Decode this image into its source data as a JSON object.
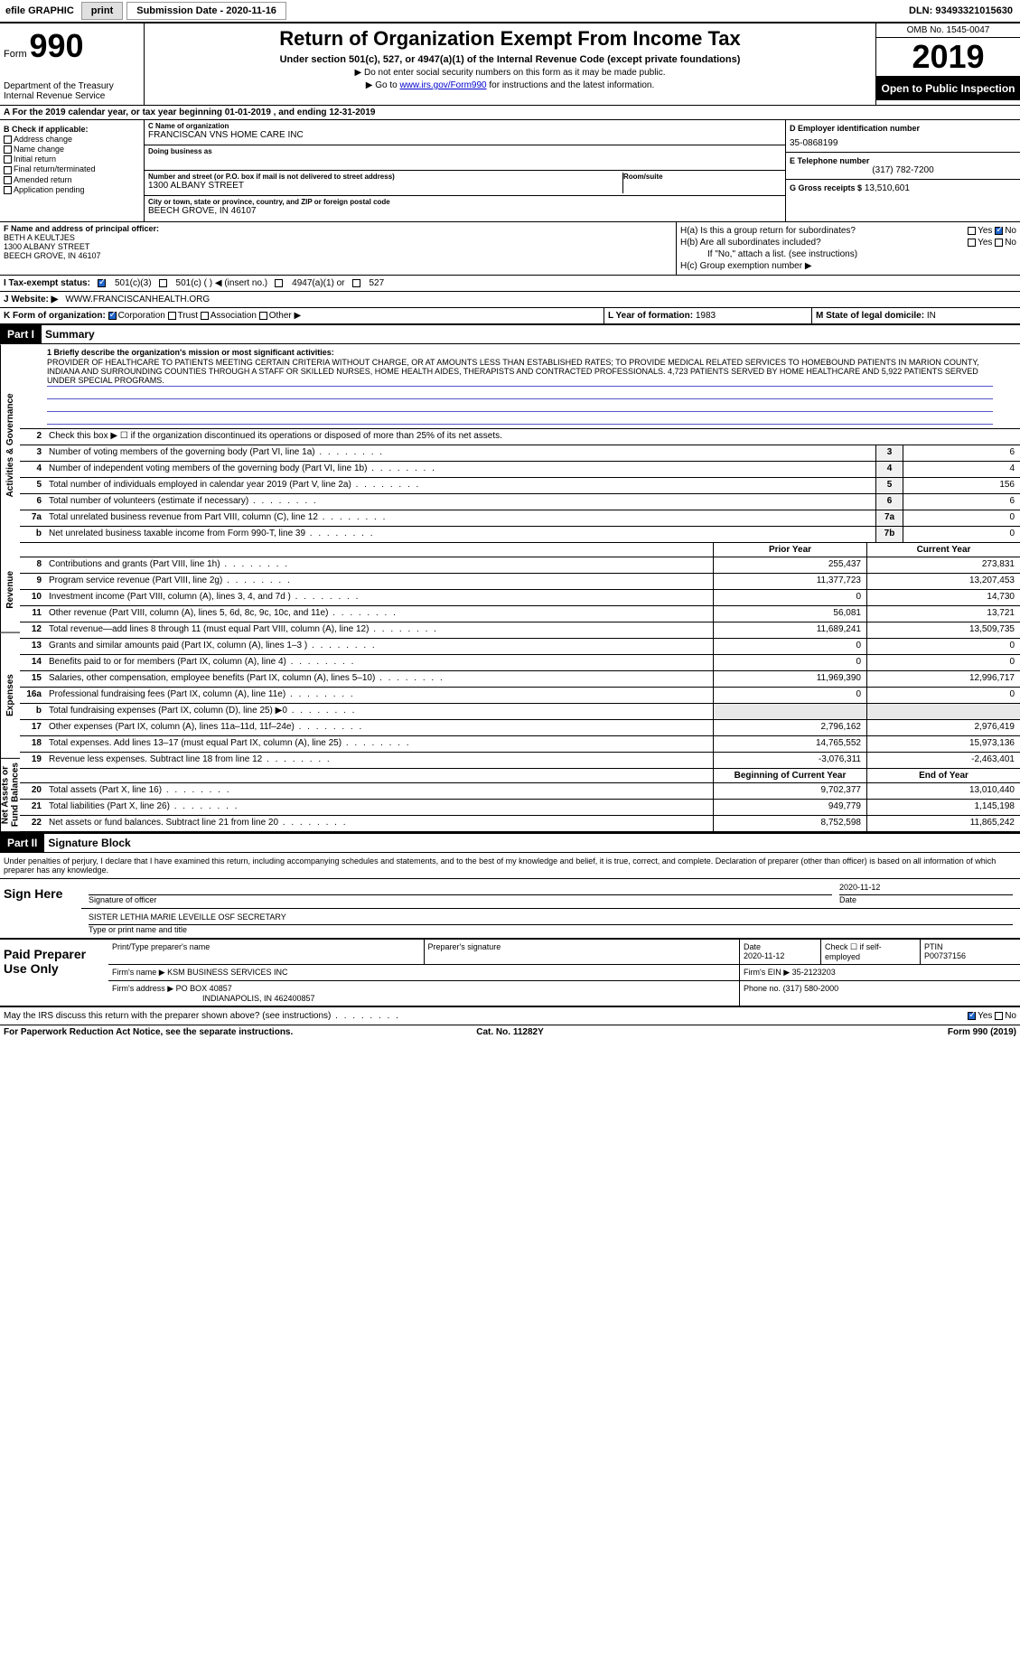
{
  "topbar": {
    "efile_label": "efile GRAPHIC",
    "print_btn": "print",
    "submission_label": "Submission Date - 2020-11-16",
    "dln": "DLN: 93493321015630"
  },
  "header": {
    "form_label": "Form",
    "form_num": "990",
    "dept": "Department of the Treasury",
    "irs": "Internal Revenue Service",
    "title": "Return of Organization Exempt From Income Tax",
    "subtitle": "Under section 501(c), 527, or 4947(a)(1) of the Internal Revenue Code (except private foundations)",
    "instr1": "▶ Do not enter social security numbers on this form as it may be made public.",
    "instr2_pre": "▶ Go to ",
    "instr2_link": "www.irs.gov/Form990",
    "instr2_post": " for instructions and the latest information.",
    "omb": "OMB No. 1545-0047",
    "year": "2019",
    "inspect": "Open to Public Inspection"
  },
  "row_a": "A For the 2019 calendar year, or tax year beginning 01-01-2019   , and ending 12-31-2019",
  "col_b": {
    "hdr": "B Check if applicable:",
    "addr_change": "Address change",
    "name_change": "Name change",
    "initial": "Initial return",
    "final": "Final return/terminated",
    "amended": "Amended return",
    "app_pending": "Application pending"
  },
  "col_c": {
    "name_lbl": "C Name of organization",
    "name": "FRANCISCAN VNS HOME CARE INC",
    "dba_lbl": "Doing business as",
    "dba": "",
    "street_lbl": "Number and street (or P.O. box if mail is not delivered to street address)",
    "street": "1300 ALBANY STREET",
    "room_lbl": "Room/suite",
    "room": "",
    "city_lbl": "City or town, state or province, country, and ZIP or foreign postal code",
    "city": "BEECH GROVE, IN  46107"
  },
  "col_d": {
    "ein_lbl": "D Employer identification number",
    "ein": "35-0868199",
    "phone_lbl": "E Telephone number",
    "phone": "(317) 782-7200",
    "gross_lbl": "G Gross receipts $",
    "gross": "13,510,601"
  },
  "col_f": {
    "lbl": "F Name and address of principal officer:",
    "name": "BETH A KEULTJES",
    "street": "1300 ALBANY STREET",
    "city": "BEECH GROVE, IN  46107"
  },
  "col_h": {
    "ha_lbl": "H(a)  Is this a group return for subordinates?",
    "hb_lbl": "H(b)  Are all subordinates included?",
    "hb_note": "If \"No,\" attach a list. (see instructions)",
    "hc_lbl": "H(c)  Group exemption number ▶",
    "yes": "Yes",
    "no": "No"
  },
  "row_i": {
    "lbl": "I   Tax-exempt status:",
    "c3": "501(c)(3)",
    "c": "501(c) (  ) ◀ (insert no.)",
    "a1": "4947(a)(1) or",
    "s527": "527"
  },
  "row_j": {
    "lbl": "J   Website: ▶",
    "val": "WWW.FRANCISCANHEALTH.ORG"
  },
  "row_k": {
    "lbl": "K Form of organization:",
    "corp": "Corporation",
    "trust": "Trust",
    "assoc": "Association",
    "other": "Other ▶"
  },
  "row_l": {
    "lbl": "L Year of formation:",
    "val": "1983"
  },
  "row_m": {
    "lbl": "M State of legal domicile:",
    "val": "IN"
  },
  "part1": {
    "hdr": "Part I",
    "title": "Summary",
    "tab_gov": "Activities & Governance",
    "tab_rev": "Revenue",
    "tab_exp": "Expenses",
    "tab_net": "Net Assets or Fund Balances",
    "l1_lbl": "1  Briefly describe the organization's mission or most significant activities:",
    "mission": "PROVIDER OF HEALTHCARE TO PATIENTS MEETING CERTAIN CRITERIA WITHOUT CHARGE, OR AT AMOUNTS LESS THAN ESTABLISHED RATES; TO PROVIDE MEDICAL RELATED SERVICES TO HOMEBOUND PATIENTS IN MARION COUNTY, INDIANA AND SURROUNDING COUNTIES THROUGH A STAFF OR SKILLED NURSES, HOME HEALTH AIDES, THERAPISTS AND CONTRACTED PROFESSIONALS. 4,723 PATIENTS SERVED BY HOME HEALTHCARE AND 5,922 PATIENTS SERVED UNDER SPECIAL PROGRAMS.",
    "l2": "Check this box ▶ ☐  if the organization discontinued its operations or disposed of more than 25% of its net assets.",
    "lines": [
      {
        "n": "3",
        "t": "Number of voting members of the governing body (Part VI, line 1a)",
        "b": "3",
        "v": "6"
      },
      {
        "n": "4",
        "t": "Number of independent voting members of the governing body (Part VI, line 1b)",
        "b": "4",
        "v": "4"
      },
      {
        "n": "5",
        "t": "Total number of individuals employed in calendar year 2019 (Part V, line 2a)",
        "b": "5",
        "v": "156"
      },
      {
        "n": "6",
        "t": "Total number of volunteers (estimate if necessary)",
        "b": "6",
        "v": "6"
      },
      {
        "n": "7a",
        "t": "Total unrelated business revenue from Part VIII, column (C), line 12",
        "b": "7a",
        "v": "0"
      },
      {
        "n": "b",
        "t": "Net unrelated business taxable income from Form 990-T, line 39",
        "b": "7b",
        "v": "0"
      }
    ],
    "col_prior": "Prior Year",
    "col_current": "Current Year",
    "revenue": [
      {
        "n": "8",
        "t": "Contributions and grants (Part VIII, line 1h)",
        "p": "255,437",
        "c": "273,831"
      },
      {
        "n": "9",
        "t": "Program service revenue (Part VIII, line 2g)",
        "p": "11,377,723",
        "c": "13,207,453"
      },
      {
        "n": "10",
        "t": "Investment income (Part VIII, column (A), lines 3, 4, and 7d )",
        "p": "0",
        "c": "14,730"
      },
      {
        "n": "11",
        "t": "Other revenue (Part VIII, column (A), lines 5, 6d, 8c, 9c, 10c, and 11e)",
        "p": "56,081",
        "c": "13,721"
      },
      {
        "n": "12",
        "t": "Total revenue—add lines 8 through 11 (must equal Part VIII, column (A), line 12)",
        "p": "11,689,241",
        "c": "13,509,735"
      }
    ],
    "expenses": [
      {
        "n": "13",
        "t": "Grants and similar amounts paid (Part IX, column (A), lines 1–3 )",
        "p": "0",
        "c": "0"
      },
      {
        "n": "14",
        "t": "Benefits paid to or for members (Part IX, column (A), line 4)",
        "p": "0",
        "c": "0"
      },
      {
        "n": "15",
        "t": "Salaries, other compensation, employee benefits (Part IX, column (A), lines 5–10)",
        "p": "11,969,390",
        "c": "12,996,717"
      },
      {
        "n": "16a",
        "t": "Professional fundraising fees (Part IX, column (A), line 11e)",
        "p": "0",
        "c": "0"
      },
      {
        "n": "b",
        "t": "Total fundraising expenses (Part IX, column (D), line 25) ▶0",
        "p": "",
        "c": ""
      },
      {
        "n": "17",
        "t": "Other expenses (Part IX, column (A), lines 11a–11d, 11f–24e)",
        "p": "2,796,162",
        "c": "2,976,419"
      },
      {
        "n": "18",
        "t": "Total expenses. Add lines 13–17 (must equal Part IX, column (A), line 25)",
        "p": "14,765,552",
        "c": "15,973,136"
      },
      {
        "n": "19",
        "t": "Revenue less expenses. Subtract line 18 from line 12",
        "p": "-3,076,311",
        "c": "-2,463,401"
      }
    ],
    "col_begin": "Beginning of Current Year",
    "col_end": "End of Year",
    "netassets": [
      {
        "n": "20",
        "t": "Total assets (Part X, line 16)",
        "p": "9,702,377",
        "c": "13,010,440"
      },
      {
        "n": "21",
        "t": "Total liabilities (Part X, line 26)",
        "p": "949,779",
        "c": "1,145,198"
      },
      {
        "n": "22",
        "t": "Net assets or fund balances. Subtract line 21 from line 20",
        "p": "8,752,598",
        "c": "11,865,242"
      }
    ]
  },
  "part2": {
    "hdr": "Part II",
    "title": "Signature Block",
    "perjury": "Under penalties of perjury, I declare that I have examined this return, including accompanying schedules and statements, and to the best of my knowledge and belief, it is true, correct, and complete. Declaration of preparer (other than officer) is based on all information of which preparer has any knowledge.",
    "sign_here": "Sign Here",
    "sig_officer_lbl": "Signature of officer",
    "sig_date": "2020-11-12",
    "date_lbl": "Date",
    "officer_name": "SISTER LETHIA MARIE LEVEILLE OSF SECRETARY",
    "type_lbl": "Type or print name and title",
    "paid_lbl": "Paid Preparer Use Only",
    "prep_name_lbl": "Print/Type preparer's name",
    "prep_sig_lbl": "Preparer's signature",
    "prep_date_lbl": "Date",
    "prep_date": "2020-11-12",
    "self_emp_lbl": "Check ☐ if self-employed",
    "ptin_lbl": "PTIN",
    "ptin": "P00737156",
    "firm_name_lbl": "Firm's name    ▶",
    "firm_name": "KSM BUSINESS SERVICES INC",
    "firm_ein_lbl": "Firm's EIN ▶",
    "firm_ein": "35-2123203",
    "firm_addr_lbl": "Firm's address ▶",
    "firm_addr1": "PO BOX 40857",
    "firm_addr2": "INDIANAPOLIS, IN  462400857",
    "firm_phone_lbl": "Phone no.",
    "firm_phone": "(317) 580-2000"
  },
  "footer": {
    "discuss": "May the IRS discuss this return with the preparer shown above? (see instructions)",
    "yes": "Yes",
    "no": "No",
    "paperwork": "For Paperwork Reduction Act Notice, see the separate instructions.",
    "cat": "Cat. No. 11282Y",
    "form": "Form 990 (2019)"
  }
}
